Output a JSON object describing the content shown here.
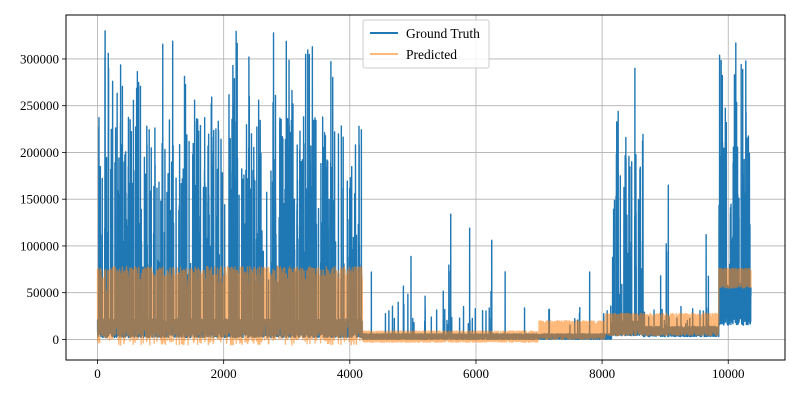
{
  "chart_data": {
    "type": "line",
    "title": "",
    "xlabel": "",
    "ylabel": "",
    "xlim": [
      -500,
      10900
    ],
    "ylim": [
      -22000,
      347000
    ],
    "xticks": [
      0,
      2000,
      4000,
      6000,
      8000,
      10000
    ],
    "yticks": [
      0,
      50000,
      100000,
      150000,
      200000,
      250000,
      300000
    ],
    "grid": true,
    "legend_position": "top-center",
    "series": [
      {
        "name": "Ground Truth",
        "color": "#1f77b4",
        "opacity": 1.0,
        "n_points": 10400,
        "segments": [
          {
            "x": [
              0,
              4200
            ],
            "base": [
              2000,
              22000
            ],
            "peak_prob": 0.09,
            "peak_range": [
              60000,
              240000
            ],
            "spike_prob": 0.008,
            "spike_range": [
              250000,
              330000
            ]
          },
          {
            "x": [
              4200,
              8150
            ],
            "base": [
              0,
              6000
            ],
            "peak_prob": 0.012,
            "peak_range": [
              15000,
              40000
            ],
            "spike_prob": 0.0015,
            "spike_range": [
              45000,
              90000
            ]
          },
          {
            "x": [
              8150,
              8650
            ],
            "base": [
              4000,
              20000
            ],
            "peak_prob": 0.07,
            "peak_range": [
              40000,
              200000
            ],
            "spike_prob": 0.01,
            "spike_range": [
              210000,
              290000
            ]
          },
          {
            "x": [
              8650,
              9850
            ],
            "base": [
              3000,
              14000
            ],
            "peak_prob": 0.012,
            "peak_range": [
              15000,
              40000
            ],
            "spike_prob": 0.002,
            "spike_range": [
              60000,
              115000
            ]
          },
          {
            "x": [
              9850,
              10360
            ],
            "base": [
              15000,
              60000
            ],
            "peak_prob": 0.07,
            "peak_range": [
              70000,
              220000
            ],
            "spike_prob": 0.012,
            "spike_range": [
              230000,
              316000
            ]
          }
        ],
        "highlights": [
          [
            120,
            330000
          ],
          [
            170,
            306000
          ],
          [
            2400,
            302000
          ],
          [
            3300,
            305000
          ],
          [
            5600,
            134000
          ],
          [
            5900,
            119000
          ],
          [
            6250,
            106000
          ],
          [
            4850,
            57000
          ],
          [
            9050,
            165000
          ],
          [
            9650,
            112000
          ],
          [
            10120,
            317000
          ],
          [
            8520,
            290000
          ]
        ]
      },
      {
        "name": "Predicted",
        "color": "#ff7f0e",
        "opacity": 0.55,
        "n_points": 10400,
        "segments": [
          {
            "x": [
              0,
              4200
            ],
            "base": [
              0,
              78000
            ],
            "dip_prob": 0.03,
            "dip_range": [
              -6000,
              0
            ]
          },
          {
            "x": [
              4200,
              7000
            ],
            "base": [
              -3000,
              9000
            ],
            "dip_prob": 0.0,
            "dip_range": [
              0,
              0
            ]
          },
          {
            "x": [
              7000,
              8050
            ],
            "base": [
              0,
              20000
            ],
            "dip_prob": 0.0,
            "dip_range": [
              0,
              0
            ]
          },
          {
            "x": [
              8050,
              9850
            ],
            "base": [
              4000,
              28000
            ],
            "dip_prob": 0.0,
            "dip_range": [
              0,
              0
            ]
          },
          {
            "x": [
              9850,
              10360
            ],
            "base": [
              55000,
              76000
            ],
            "dip_prob": 0.0,
            "dip_range": [
              0,
              0
            ]
          }
        ]
      }
    ]
  }
}
